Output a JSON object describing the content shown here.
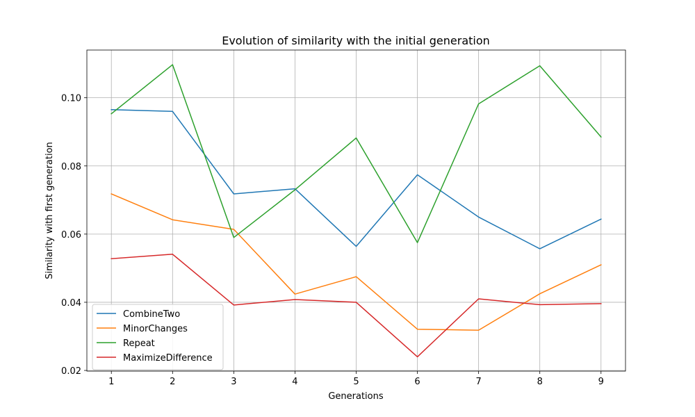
{
  "chart_data": {
    "type": "line",
    "title": "Evolution of similarity with the initial generation",
    "xlabel": "Generations",
    "ylabel": "Similarity with first generation",
    "x": [
      1,
      2,
      3,
      4,
      5,
      6,
      7,
      8,
      9
    ],
    "xlim": [
      0.6,
      9.4
    ],
    "ylim": [
      0.0198,
      0.114
    ],
    "xticks": [
      "1",
      "2",
      "3",
      "4",
      "5",
      "6",
      "7",
      "8",
      "9"
    ],
    "yticks": [
      "0.02",
      "0.04",
      "0.06",
      "0.08",
      "0.10"
    ],
    "grid": true,
    "legend_position": "lower-left",
    "series": [
      {
        "name": "CombineTwo",
        "color": "#1f77b4",
        "values": [
          0.0965,
          0.096,
          0.0718,
          0.0733,
          0.0564,
          0.0774,
          0.065,
          0.0557,
          0.0644
        ]
      },
      {
        "name": "MinorChanges",
        "color": "#ff7f0e",
        "values": [
          0.0718,
          0.0642,
          0.0614,
          0.0424,
          0.0475,
          0.0321,
          0.0318,
          0.0425,
          0.051
        ]
      },
      {
        "name": "Repeat",
        "color": "#2ca02c",
        "values": [
          0.0953,
          0.1097,
          0.059,
          0.073,
          0.0882,
          0.0575,
          0.0982,
          0.1094,
          0.0885
        ]
      },
      {
        "name": "MaximizeDifference",
        "color": "#d62728",
        "values": [
          0.0528,
          0.0541,
          0.0392,
          0.0408,
          0.04,
          0.024,
          0.041,
          0.0393,
          0.0396
        ]
      }
    ]
  }
}
